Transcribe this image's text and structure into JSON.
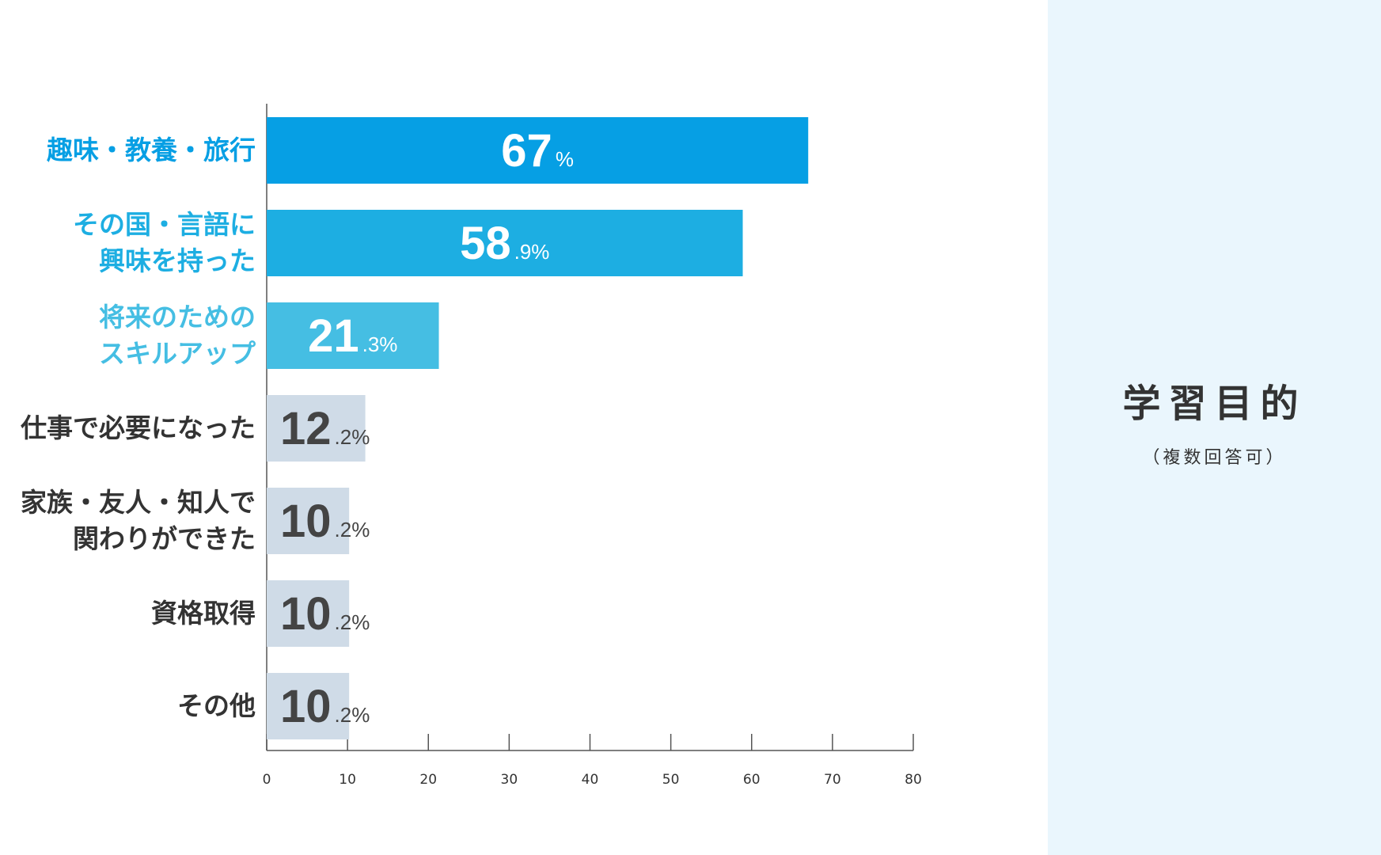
{
  "chart_data": {
    "type": "bar",
    "orientation": "horizontal",
    "title": "学習目的",
    "subtitle": "（複数回答可）",
    "categories": [
      "趣味・教養・旅行",
      "その国・言語に\n興味を持った",
      "将来のための\nスキルアップ",
      "仕事で必要になった",
      "家族・友人・知人で\n関わりができた",
      "資格取得",
      "その他"
    ],
    "values": [
      67,
      58.9,
      21.3,
      12.2,
      10.2,
      10.2,
      10.2
    ],
    "value_labels": [
      "67%",
      "58.9%",
      "21.3%",
      "12.2%",
      "10.2%",
      "10.2%",
      "10.2%"
    ],
    "colors": [
      "#069fe4",
      "#1daee2",
      "#45bee3",
      "#cfdbe7",
      "#cfdbe7",
      "#cfdbe7",
      "#cfdbe7"
    ],
    "label_colors": [
      "#069fe4",
      "#1daee2",
      "#45bee3",
      "#333333",
      "#333333",
      "#333333",
      "#333333"
    ],
    "value_label_colors": [
      "#ffffff",
      "#ffffff",
      "#ffffff",
      "#444444",
      "#444444",
      "#444444",
      "#444444"
    ],
    "xlim": [
      0,
      80
    ],
    "xticks": [
      0,
      10,
      20,
      30,
      40,
      50,
      60,
      70,
      80
    ]
  }
}
